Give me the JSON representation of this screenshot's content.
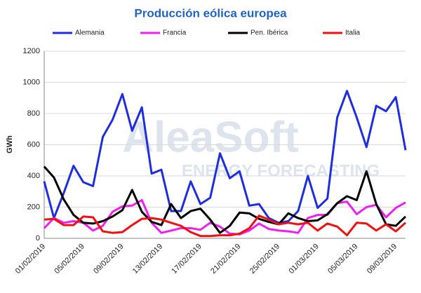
{
  "chart_data": {
    "type": "line",
    "title": "Producción eólica europea",
    "ylabel": "GWh",
    "watermark": [
      "AleaSoft",
      "ENERGY FORECASTING"
    ],
    "categories": [
      "01/02/2019",
      null,
      null,
      null,
      "05/02/2019",
      null,
      null,
      null,
      "09/02/2019",
      null,
      null,
      null,
      "13/02/2019",
      null,
      null,
      null,
      "17/02/2019",
      null,
      null,
      null,
      "21/02/2019",
      null,
      null,
      null,
      "25/02/2019",
      null,
      null,
      null,
      "01/03/2019",
      null,
      null,
      null,
      "05/03/2019",
      null,
      null,
      null,
      "09/03/2019",
      null
    ],
    "series": [
      {
        "name": "Alemania",
        "color": "#1f2de0",
        "values": [
          365,
          130,
          290,
          465,
          360,
          335,
          650,
          760,
          925,
          690,
          840,
          415,
          440,
          175,
          175,
          365,
          220,
          260,
          545,
          385,
          430,
          210,
          220,
          130,
          100,
          110,
          175,
          400,
          195,
          255,
          775,
          945,
          775,
          585,
          850,
          815,
          905,
          565
        ]
      },
      {
        "name": "Francia",
        "color": "#f01ef0",
        "values": [
          65,
          130,
          100,
          110,
          100,
          50,
          80,
          170,
          205,
          210,
          245,
          100,
          35,
          50,
          65,
          65,
          55,
          100,
          75,
          30,
          25,
          50,
          95,
          60,
          50,
          45,
          35,
          130,
          150,
          150,
          225,
          235,
          155,
          200,
          215,
          135,
          195,
          230
        ]
      },
      {
        "name": "Pen. Ibérica",
        "color": "#000000",
        "values": [
          460,
          390,
          250,
          150,
          100,
          95,
          110,
          140,
          180,
          310,
          170,
          105,
          85,
          220,
          130,
          175,
          190,
          120,
          35,
          80,
          165,
          160,
          125,
          105,
          90,
          160,
          130,
          110,
          115,
          155,
          225,
          270,
          245,
          430,
          220,
          90,
          80,
          140
        ]
      },
      {
        "name": "Italia",
        "color": "#f01010",
        "values": [
          120,
          125,
          85,
          85,
          140,
          135,
          45,
          35,
          40,
          85,
          125,
          130,
          120,
          100,
          80,
          40,
          15,
          15,
          20,
          20,
          30,
          65,
          145,
          120,
          90,
          100,
          90,
          100,
          50,
          95,
          75,
          20,
          100,
          95,
          50,
          90,
          45,
          100
        ]
      }
    ],
    "ylim": [
      0,
      1200
    ],
    "yticks": [
      0,
      200,
      400,
      600,
      800,
      1000,
      1200
    ],
    "grid": true,
    "legend": "top"
  }
}
